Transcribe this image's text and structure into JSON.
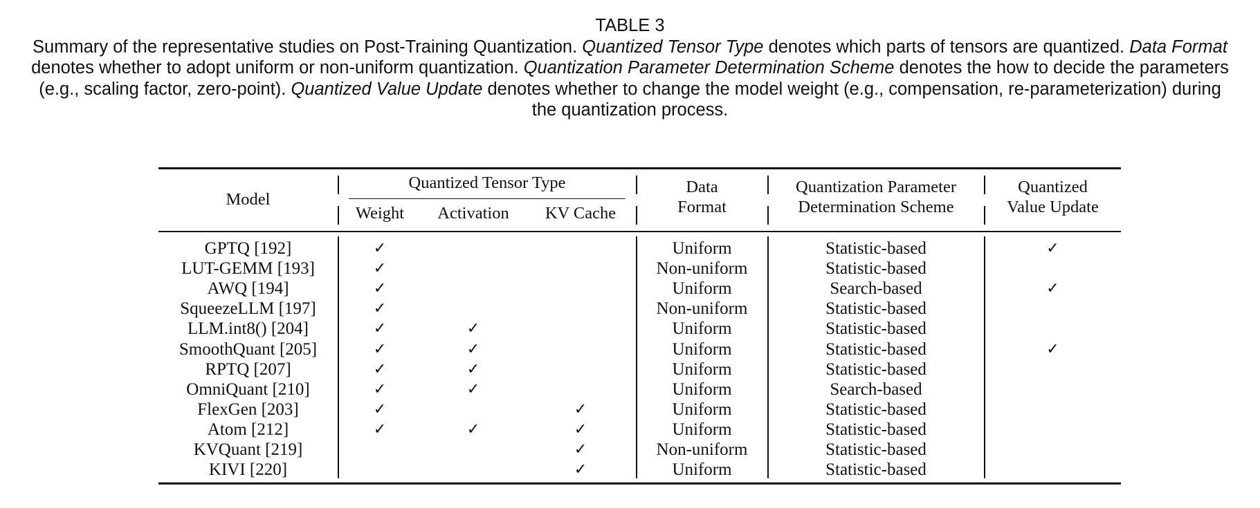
{
  "caption": {
    "table_label": "TABLE 3",
    "part1": "Summary of the representative studies on Post-Training Quantization. ",
    "term1": "Quantized Tensor Type",
    "part2": " denotes which parts of tensors are quantized. ",
    "term2": "Data Format",
    "part3": " denotes whether to adopt uniform or non-uniform quantization. ",
    "term3": "Quantization Parameter Determination Scheme",
    "part4": " denotes the how to decide the parameters (e.g., scaling factor, zero-point). ",
    "term4": "Quantized Value Update",
    "part5": " denotes whether to change the model weight (e.g., compensation, re-parameterization) during the quantization process."
  },
  "header": {
    "model": "Model",
    "tensor_group": "Quantized Tensor Type",
    "weight": "Weight",
    "activation": "Activation",
    "kv_cache": "KV Cache",
    "data_format_l1": "Data",
    "data_format_l2": "Format",
    "qpds_l1": "Quantization Parameter",
    "qpds_l2": "Determination Scheme",
    "qvu_l1": "Quantized",
    "qvu_l2": "Value Update"
  },
  "check_glyph": "✓",
  "rows": [
    {
      "model": "GPTQ [192]",
      "weight": true,
      "activation": false,
      "kv_cache": false,
      "data_format": "Uniform",
      "scheme": "Statistic-based",
      "value_update": true
    },
    {
      "model": "LUT-GEMM [193]",
      "weight": true,
      "activation": false,
      "kv_cache": false,
      "data_format": "Non-uniform",
      "scheme": "Statistic-based",
      "value_update": false
    },
    {
      "model": "AWQ [194]",
      "weight": true,
      "activation": false,
      "kv_cache": false,
      "data_format": "Uniform",
      "scheme": "Search-based",
      "value_update": true
    },
    {
      "model": "SqueezeLLM [197]",
      "weight": true,
      "activation": false,
      "kv_cache": false,
      "data_format": "Non-uniform",
      "scheme": "Statistic-based",
      "value_update": false
    },
    {
      "model": "LLM.int8() [204]",
      "weight": true,
      "activation": true,
      "kv_cache": false,
      "data_format": "Uniform",
      "scheme": "Statistic-based",
      "value_update": false
    },
    {
      "model": "SmoothQuant [205]",
      "weight": true,
      "activation": true,
      "kv_cache": false,
      "data_format": "Uniform",
      "scheme": "Statistic-based",
      "value_update": true
    },
    {
      "model": "RPTQ [207]",
      "weight": true,
      "activation": true,
      "kv_cache": false,
      "data_format": "Uniform",
      "scheme": "Statistic-based",
      "value_update": false
    },
    {
      "model": "OmniQuant [210]",
      "weight": true,
      "activation": true,
      "kv_cache": false,
      "data_format": "Uniform",
      "scheme": "Search-based",
      "value_update": false
    },
    {
      "model": "FlexGen [203]",
      "weight": true,
      "activation": false,
      "kv_cache": true,
      "data_format": "Uniform",
      "scheme": "Statistic-based",
      "value_update": false
    },
    {
      "model": "Atom [212]",
      "weight": true,
      "activation": true,
      "kv_cache": true,
      "data_format": "Uniform",
      "scheme": "Statistic-based",
      "value_update": false
    },
    {
      "model": "KVQuant [219]",
      "weight": false,
      "activation": false,
      "kv_cache": true,
      "data_format": "Non-uniform",
      "scheme": "Statistic-based",
      "value_update": false
    },
    {
      "model": "KIVI [220]",
      "weight": false,
      "activation": false,
      "kv_cache": true,
      "data_format": "Uniform",
      "scheme": "Statistic-based",
      "value_update": false
    }
  ]
}
